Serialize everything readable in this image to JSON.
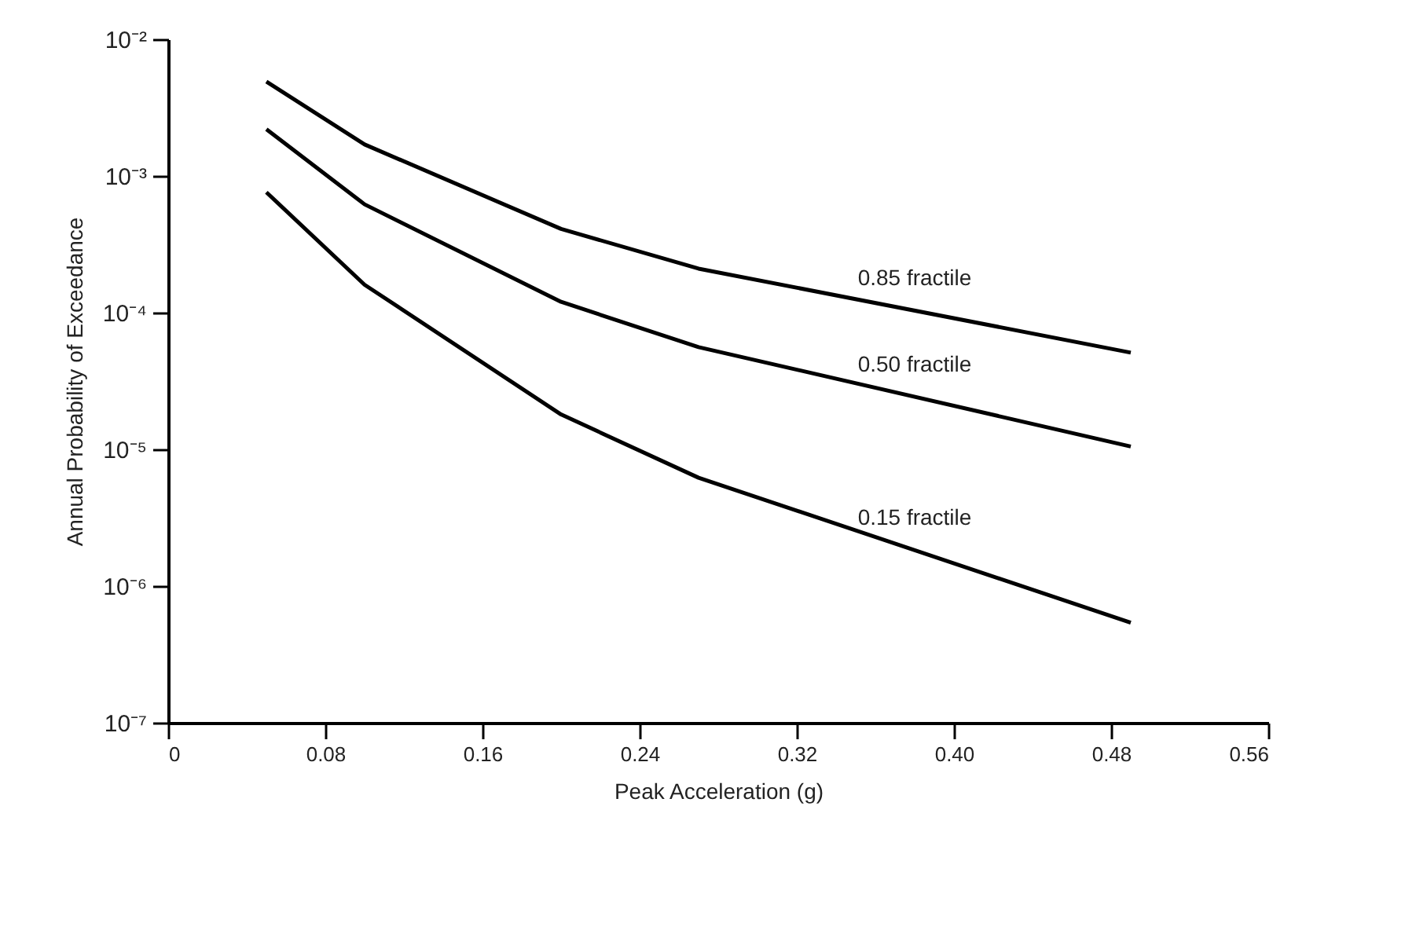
{
  "chart_data": {
    "type": "line",
    "xlabel": "Peak Acceleration (g)",
    "ylabel": "Annual Probability of Exceedance",
    "log": "y",
    "grid": false,
    "legend": false,
    "marker": "none",
    "line_style": "solid",
    "xlim": [
      0,
      0.56
    ],
    "xticks": [
      0,
      0.08,
      0.16,
      0.24,
      0.32,
      {
        "value": 0.4,
        "label": "0.40"
      },
      0.48,
      0.56
    ],
    "ylim": [
      1e-07,
      0.01
    ],
    "yticks": [
      {
        "value": 1e-07,
        "label": "10⁻⁷"
      },
      {
        "value": 1e-06,
        "label": "10⁻⁶"
      },
      {
        "value": 1e-05,
        "label": "10⁻⁵"
      },
      {
        "value": 0.0001,
        "label": "10⁻⁴"
      },
      {
        "value": 0.001,
        "label": "10⁻³"
      },
      {
        "value": 0.01,
        "label": "10⁻²"
      }
    ],
    "x": [
      0.05,
      0.1,
      0.2,
      0.27,
      0.49
    ],
    "series": [
      {
        "name": "0.85 fractile",
        "color": "#000000",
        "values": [
          0.0049,
          0.0017,
          0.00041,
          0.00021,
          5.1e-05
        ]
      },
      {
        "name": "0.50 fractile",
        "color": "#000000",
        "values": [
          0.0022,
          0.00062,
          0.00012,
          5.6e-05,
          1.05e-05
        ]
      },
      {
        "name": "0.15 fractile",
        "color": "#000000",
        "values": [
          0.00076,
          0.00016,
          1.8e-05,
          6.2e-06,
          5.4e-07
        ]
      }
    ]
  }
}
